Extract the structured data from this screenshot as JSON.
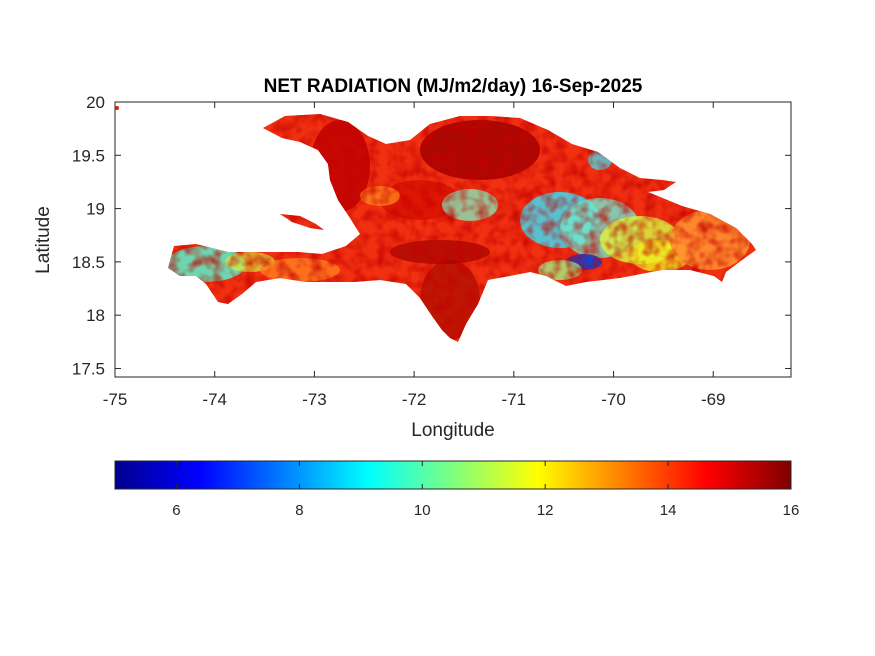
{
  "title": "NET RADIATION (MJ/m2/day) 16-Sep-2025",
  "xlabel": "Longitude",
  "ylabel": "Latitude",
  "x_ticks": [
    "-75",
    "-74",
    "-73",
    "-72",
    "-71",
    "-70",
    "-69"
  ],
  "y_ticks": [
    "20",
    "19.5",
    "19",
    "18.5",
    "18",
    "17.5"
  ],
  "colorbar": {
    "ticks": [
      "6",
      "8",
      "10",
      "12",
      "14",
      "16"
    ],
    "range": [
      5,
      16
    ],
    "colormap": "jet"
  },
  "chart_data": {
    "type": "heatmap",
    "title": "NET RADIATION (MJ/m2/day) 16-Sep-2025",
    "xlabel": "Longitude",
    "ylabel": "Latitude",
    "xlim": [
      -75,
      -68.22
    ],
    "ylim": [
      17.42,
      20
    ],
    "x_ticks": [
      -75,
      -74,
      -73,
      -72,
      -71,
      -70,
      -69
    ],
    "y_ticks": [
      17.5,
      18,
      18.5,
      19,
      19.5,
      20
    ],
    "color_range": [
      5,
      16
    ],
    "colormap": "jet",
    "region": "Hispaniola (Haiti and Dominican Republic)",
    "value_zones": [
      {
        "lon": [
          -74.45,
          -73.9
        ],
        "lat": [
          18.3,
          18.65
        ],
        "approx_value": 10.5
      },
      {
        "lon": [
          -73.6,
          -72.8
        ],
        "lat": [
          18.25,
          18.5
        ],
        "approx_value": 13.5
      },
      {
        "lon": [
          -72.8,
          -71.8
        ],
        "lat": [
          18.9,
          19.8
        ],
        "approx_value": 15.5
      },
      {
        "lon": [
          -71.8,
          -71.0
        ],
        "lat": [
          19.3,
          19.8
        ],
        "approx_value": 15.8
      },
      {
        "lon": [
          -71.4,
          -70.5
        ],
        "lat": [
          18.9,
          19.3
        ],
        "approx_value": 11.0
      },
      {
        "lon": [
          -70.6,
          -70.2
        ],
        "lat": [
          18.4,
          18.6
        ],
        "approx_value": 6.5
      },
      {
        "lon": [
          -70.4,
          -69.5
        ],
        "lat": [
          18.4,
          19.1
        ],
        "approx_value": 11.5
      },
      {
        "lon": [
          -69.5,
          -68.7
        ],
        "lat": [
          18.4,
          18.9
        ],
        "approx_value": 13.8
      },
      {
        "lon": [
          -72.0,
          -71.3
        ],
        "lat": [
          17.8,
          18.3
        ],
        "approx_value": 15.5
      }
    ]
  }
}
